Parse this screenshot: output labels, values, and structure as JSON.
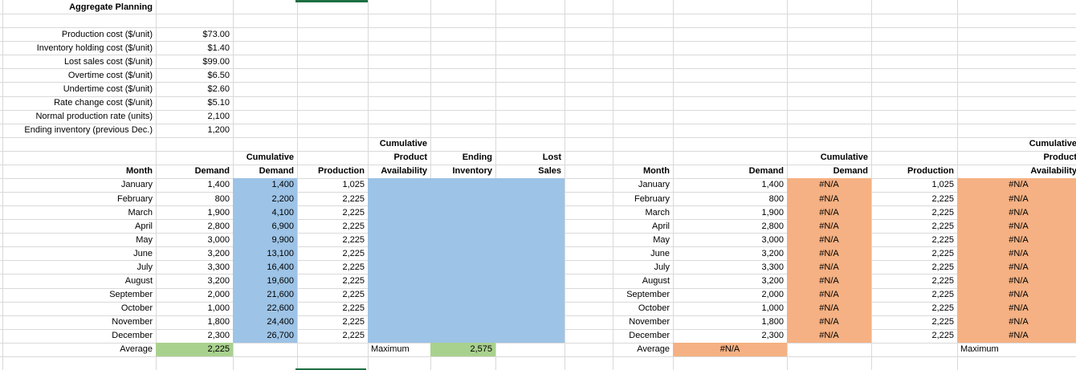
{
  "title": "Aggregate Planning",
  "parameters": [
    {
      "label": "Production cost ($/unit)",
      "value": "$73.00"
    },
    {
      "label": "Inventory holding cost ($/unit)",
      "value": "$1.40"
    },
    {
      "label": "Lost sales cost ($/unit)",
      "value": "$99.00"
    },
    {
      "label": "Overtime cost ($/unit)",
      "value": "$6.50"
    },
    {
      "label": "Undertime cost ($/unit)",
      "value": "$2.60"
    },
    {
      "label": "Rate change cost ($/unit)",
      "value": "$5.10"
    },
    {
      "label": "Normal production rate (units)",
      "value": "2,100"
    },
    {
      "label": "Ending inventory (previous Dec.)",
      "value": "1,200"
    }
  ],
  "left_table": {
    "headers": {
      "month": "Month",
      "demand": "Demand",
      "cum_demand": [
        "Cumulative",
        "Demand"
      ],
      "production": "Production",
      "cum_avail": [
        "Cumulative",
        "Product",
        "Availability"
      ],
      "ending_inv": [
        "Ending",
        "Inventory"
      ],
      "lost_sales": [
        "Lost",
        "Sales"
      ]
    },
    "rows": [
      {
        "month": "January",
        "demand": "1,400",
        "cum_demand": "1,400",
        "production": "1,025"
      },
      {
        "month": "February",
        "demand": "800",
        "cum_demand": "2,200",
        "production": "2,225"
      },
      {
        "month": "March",
        "demand": "1,900",
        "cum_demand": "4,100",
        "production": "2,225"
      },
      {
        "month": "April",
        "demand": "2,800",
        "cum_demand": "6,900",
        "production": "2,225"
      },
      {
        "month": "May",
        "demand": "3,000",
        "cum_demand": "9,900",
        "production": "2,225"
      },
      {
        "month": "June",
        "demand": "3,200",
        "cum_demand": "13,100",
        "production": "2,225"
      },
      {
        "month": "July",
        "demand": "3,300",
        "cum_demand": "16,400",
        "production": "2,225"
      },
      {
        "month": "August",
        "demand": "3,200",
        "cum_demand": "19,600",
        "production": "2,225"
      },
      {
        "month": "September",
        "demand": "2,000",
        "cum_demand": "21,600",
        "production": "2,225"
      },
      {
        "month": "October",
        "demand": "1,000",
        "cum_demand": "22,600",
        "production": "2,225"
      },
      {
        "month": "November",
        "demand": "1,800",
        "cum_demand": "24,400",
        "production": "2,225"
      },
      {
        "month": "December",
        "demand": "2,300",
        "cum_demand": "26,700",
        "production": "2,225"
      }
    ],
    "footer": {
      "average_label": "Average",
      "average_value": "2,225",
      "maximum_label": "Maximum",
      "maximum_value": "2,575"
    }
  },
  "right_table": {
    "headers": {
      "month": "Month",
      "demand": "Demand",
      "cum_demand": [
        "Cumulative",
        "Demand"
      ],
      "production": "Production",
      "cum_avail": [
        "Cumulative",
        "Product",
        "Availability"
      ]
    },
    "rows": [
      {
        "month": "January",
        "demand": "1,400",
        "cum_demand": "#N/A",
        "production": "1,025",
        "cum_avail": "#N/A"
      },
      {
        "month": "February",
        "demand": "800",
        "cum_demand": "#N/A",
        "production": "2,225",
        "cum_avail": "#N/A"
      },
      {
        "month": "March",
        "demand": "1,900",
        "cum_demand": "#N/A",
        "production": "2,225",
        "cum_avail": "#N/A"
      },
      {
        "month": "April",
        "demand": "2,800",
        "cum_demand": "#N/A",
        "production": "2,225",
        "cum_avail": "#N/A"
      },
      {
        "month": "May",
        "demand": "3,000",
        "cum_demand": "#N/A",
        "production": "2,225",
        "cum_avail": "#N/A"
      },
      {
        "month": "June",
        "demand": "3,200",
        "cum_demand": "#N/A",
        "production": "2,225",
        "cum_avail": "#N/A"
      },
      {
        "month": "July",
        "demand": "3,300",
        "cum_demand": "#N/A",
        "production": "2,225",
        "cum_avail": "#N/A"
      },
      {
        "month": "August",
        "demand": "3,200",
        "cum_demand": "#N/A",
        "production": "2,225",
        "cum_avail": "#N/A"
      },
      {
        "month": "September",
        "demand": "2,000",
        "cum_demand": "#N/A",
        "production": "2,225",
        "cum_avail": "#N/A"
      },
      {
        "month": "October",
        "demand": "1,000",
        "cum_demand": "#N/A",
        "production": "2,225",
        "cum_avail": "#N/A"
      },
      {
        "month": "November",
        "demand": "1,800",
        "cum_demand": "#N/A",
        "production": "2,225",
        "cum_avail": "#N/A"
      },
      {
        "month": "December",
        "demand": "2,300",
        "cum_demand": "#N/A",
        "production": "2,225",
        "cum_avail": "#N/A"
      }
    ],
    "footer": {
      "average_label": "Average",
      "average_value": "#N/A",
      "maximum_label": "Maximum"
    }
  },
  "colors": {
    "blue_fill": "#9dc3e6",
    "orange_fill": "#f5b183",
    "green_fill": "#a9d18e",
    "gridline": "#d9d9d9",
    "selection_green": "#1d6f42"
  }
}
